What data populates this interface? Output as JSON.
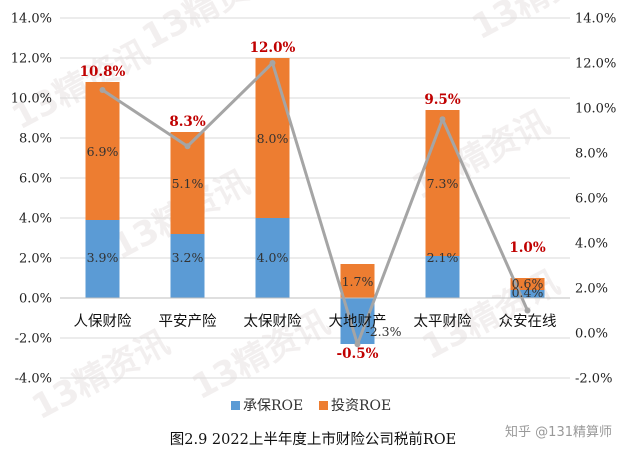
{
  "chart_data": {
    "type": "bar",
    "stacked": true,
    "categories": [
      "人保财险",
      "平安产险",
      "太保财险",
      "大地财产",
      "太平财险",
      "众安在线"
    ],
    "series": [
      {
        "name": "承保ROE",
        "values": [
          3.9,
          3.2,
          4.0,
          -2.3,
          2.1,
          0.4
        ],
        "labels": [
          "3.9%",
          "3.2%",
          "4.0%",
          "-2.3%",
          "2.1%",
          "0.4%"
        ],
        "color": "#5b9bd5"
      },
      {
        "name": "投资ROE",
        "values": [
          6.9,
          5.1,
          8.0,
          1.7,
          7.3,
          0.6
        ],
        "labels": [
          "6.9%",
          "5.1%",
          "8.0%",
          "1.7%",
          "7.3%",
          "0.6%"
        ],
        "color": "#ed7d31"
      }
    ],
    "line": {
      "values": [
        10.8,
        8.3,
        12.0,
        -0.5,
        9.5,
        1.0
      ],
      "labels": [
        "10.8%",
        "8.3%",
        "12.0%",
        "-0.5%",
        "9.5%",
        "1.0%"
      ],
      "color": "#a5a5a5",
      "label_color": "#c00000"
    },
    "y_left": {
      "min": -4.0,
      "max": 14.0,
      "step": 2.0,
      "ticks": [
        "-4.0%",
        "-2.0%",
        "0.0%",
        "2.0%",
        "4.0%",
        "6.0%",
        "8.0%",
        "10.0%",
        "12.0%",
        "14.0%"
      ]
    },
    "y_right": {
      "min": -2.0,
      "max": 14.0,
      "step": 2.0,
      "ticks": [
        "-2.0%",
        "0.0%",
        "2.0%",
        "4.0%",
        "6.0%",
        "8.0%",
        "10.0%",
        "12.0%",
        "14.0%"
      ]
    },
    "grid": true,
    "legend": "bottom",
    "caption": "图2.9  2022上半年度上市财险公司税前ROE"
  },
  "credit": "知乎 @131精算师",
  "watermark": "13精资讯"
}
